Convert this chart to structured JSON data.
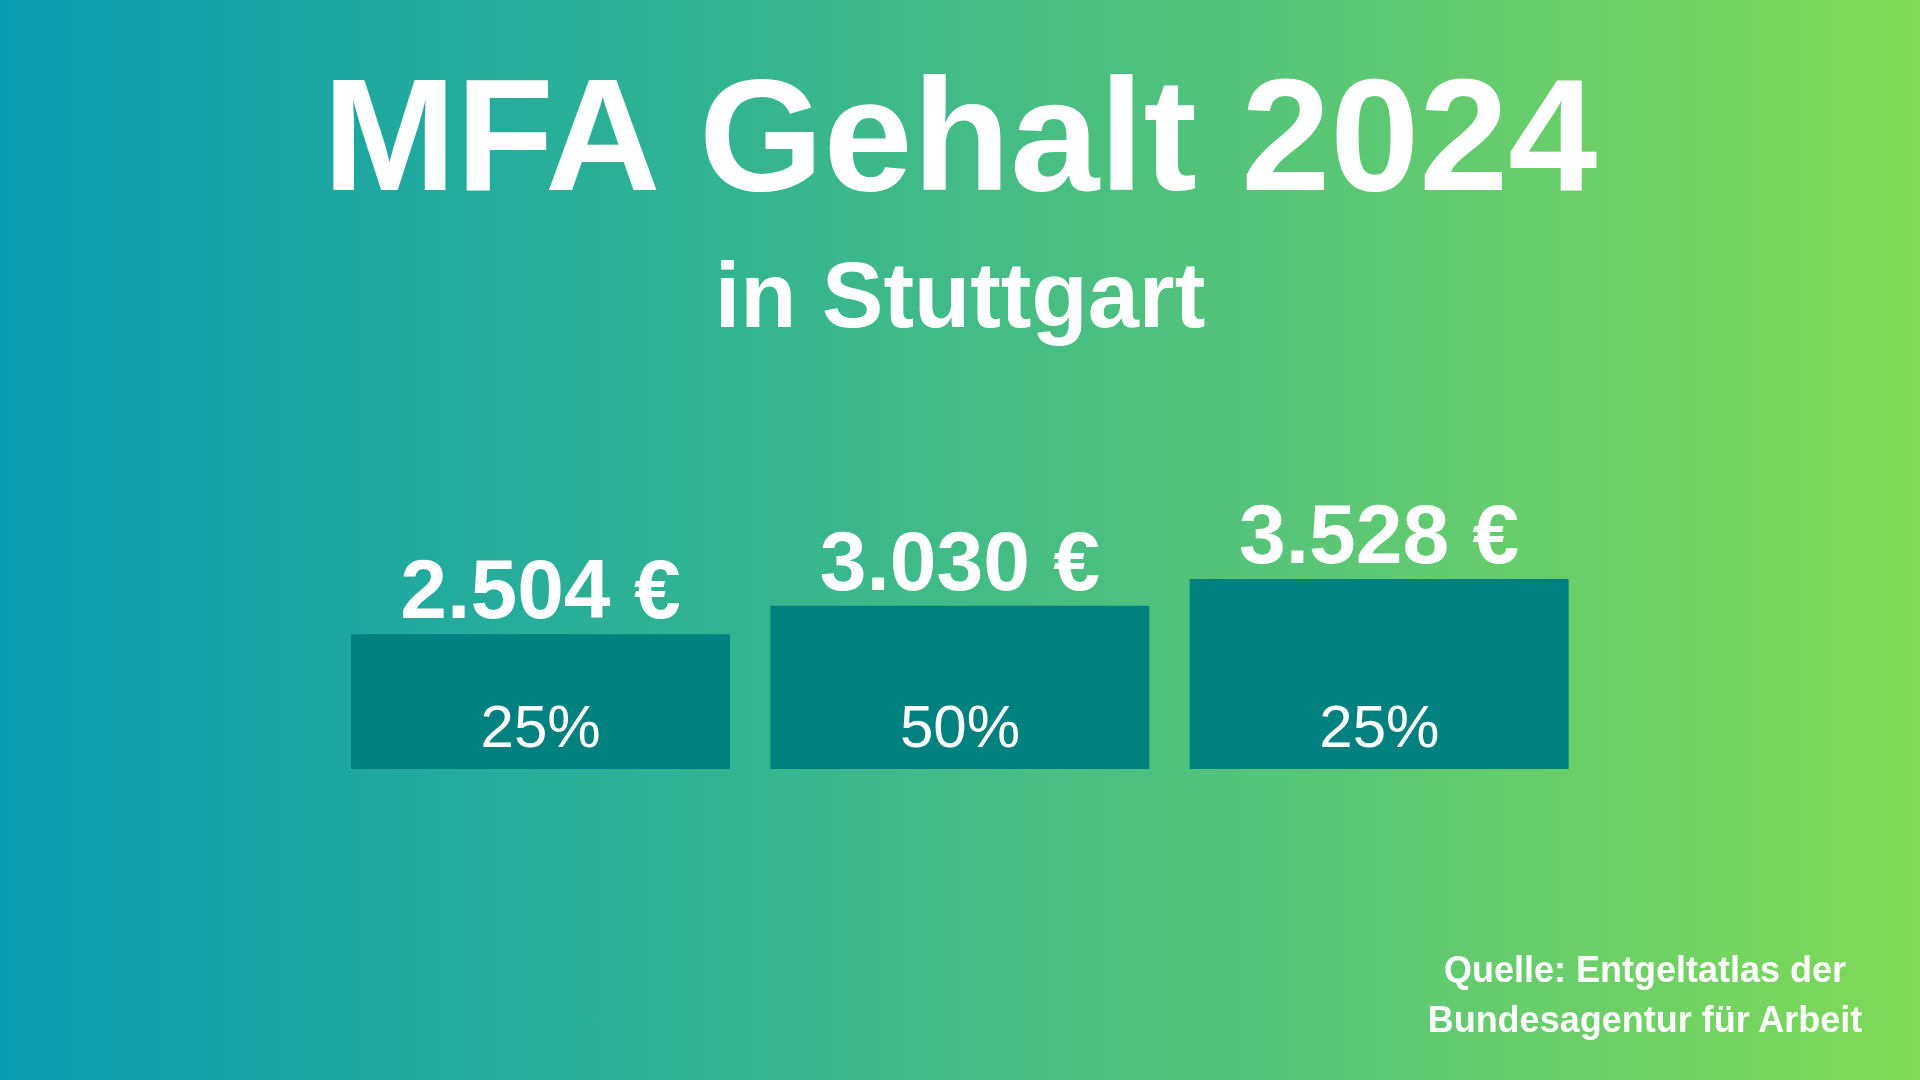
{
  "chart_data": {
    "type": "bar",
    "title": "MFA Gehalt 2024",
    "subtitle": "in Stuttgart",
    "categories": [
      "25%",
      "50%",
      "25%"
    ],
    "values": [
      2504,
      3030,
      3528
    ],
    "value_labels": [
      "2.504 €",
      "3.030 €",
      "3.528 €"
    ],
    "color": "#00807e",
    "tick_labels": "x",
    "annotations": [
      "Quelle: Entgeltatlas der Bundesagentur für Arbeit"
    ]
  }
}
